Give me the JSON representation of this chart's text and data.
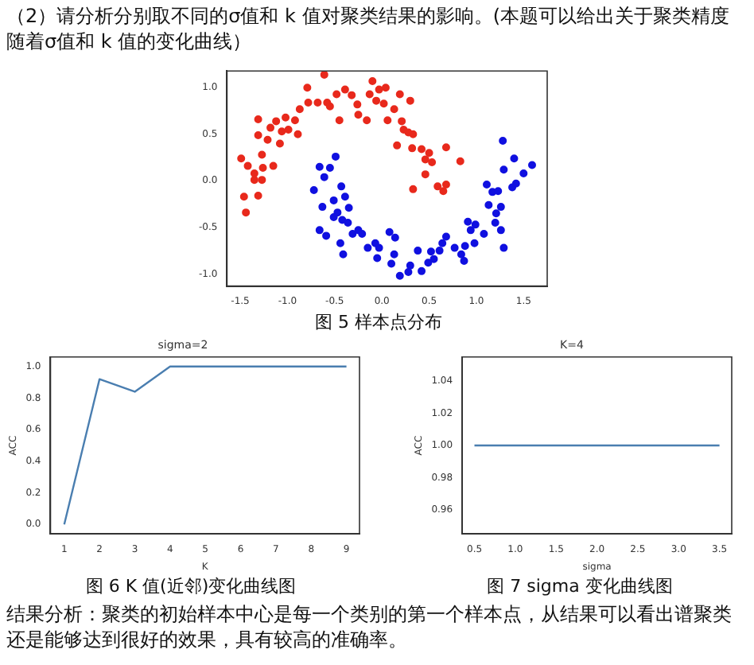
{
  "chart_data": [
    {
      "type": "scatter",
      "marker": "circle",
      "xlim": [
        -1.64,
        1.75
      ],
      "ylim": [
        -1.13,
        1.18
      ],
      "xticks": [
        -1.5,
        {
          "value": -1,
          "label": "-1.0"
        },
        -0.5,
        {
          "value": 0,
          "label": "0.0"
        },
        0.5,
        {
          "value": 1,
          "label": "1.0"
        },
        1.5
      ],
      "yticks": [
        {
          "value": -1,
          "label": "-1.0"
        },
        -0.5,
        {
          "value": 0,
          "label": "0.0"
        },
        0.5,
        {
          "value": 1,
          "label": "1.0"
        }
      ],
      "annotations": [
        "（2）请分析分别取不同的σ值和 k 值对聚类结果的影响。(本题可以给出关于聚类精度随着σ值和 k 值的变化曲线）",
        "图 5 样本点分布"
      ],
      "series": [
        {
          "color": "#e8291c",
          "x": [
            -1.49,
            -1.42,
            -1.46,
            -1.44,
            -1.31,
            -1.31,
            -1.35,
            -1.35,
            -1.27,
            -1.31,
            -1.27,
            -1.26,
            -1.15,
            -1.21,
            -1.18,
            -1.12,
            -1.06,
            -1.02,
            -1.08,
            -0.99,
            -0.92,
            -0.87,
            -0.89,
            -0.79,
            -0.78,
            -0.68,
            -0.61,
            -0.58,
            -0.55,
            -0.48,
            -0.45,
            -0.39,
            -0.32,
            -0.26,
            -0.25,
            -0.16,
            -0.13,
            -0.1,
            -0.06,
            -0.03,
            0.04,
            0.02,
            0.06,
            0.13,
            0.19,
            0.21,
            0.3,
            0.23,
            0.28,
            0.33,
            0.16,
            0.32,
            0.42,
            0.5,
            0.46,
            0.53,
            0.46,
            0.68,
            0.83,
            0.33,
            0.59,
            0.65,
            0.68
          ],
          "values": [
            0.24,
            0.16,
            -0.17,
            -0.34,
            0.66,
            0.49,
            0.08,
            0.01,
            0.01,
            -0.16,
            0.28,
            0.14,
            0.16,
            0.44,
            0.57,
            0.64,
            0.53,
            0.68,
            0.4,
            0.55,
            0.65,
            0.77,
            0.5,
            1.0,
            0.84,
            0.84,
            1.14,
            0.84,
            0.8,
            0.93,
            0.65,
            0.98,
            0.92,
            0.82,
            0.71,
            0.65,
            0.93,
            1.07,
            0.86,
            0.98,
            1.0,
            0.83,
            0.65,
            0.77,
            0.93,
            0.64,
            0.86,
            0.55,
            0.52,
            0.5,
            0.38,
            0.35,
            0.34,
            0.3,
            0.23,
            0.2,
            0.07,
            0.36,
            0.21,
            -0.09,
            -0.06,
            -0.11,
            -0.04
          ]
        },
        {
          "color": "#1010e0",
          "x": [
            -0.72,
            -0.66,
            -0.61,
            -0.49,
            -0.55,
            -0.51,
            -0.63,
            -0.43,
            -0.39,
            -0.35,
            -0.47,
            -0.42,
            -0.51,
            -0.36,
            -0.66,
            -0.59,
            -0.44,
            -0.41,
            -0.31,
            -0.25,
            -0.21,
            -0.15,
            -0.07,
            -0.03,
            -0.05,
            0.08,
            0.14,
            0.13,
            0.1,
            0.19,
            0.28,
            0.3,
            0.38,
            0.42,
            0.49,
            0.52,
            0.55,
            0.61,
            0.64,
            0.68,
            0.77,
            0.84,
            0.87,
            0.88,
            0.91,
            0.94,
            0.99,
            0.98,
            1.08,
            1.11,
            1.13,
            1.17,
            1.2,
            1.23,
            1.21,
            1.26,
            1.29,
            1.29,
            1.28,
            1.38,
            1.42,
            1.4,
            1.5,
            1.59,
            1.26
          ],
          "values": [
            -0.1,
            0.15,
            0.04,
            0.26,
            0.14,
            -0.21,
            -0.28,
            -0.06,
            -0.17,
            -0.29,
            -0.34,
            -0.42,
            -0.39,
            -0.45,
            -0.53,
            -0.59,
            -0.67,
            -0.79,
            -0.57,
            -0.53,
            -0.57,
            -0.72,
            -0.67,
            -0.72,
            -0.83,
            -0.55,
            -0.61,
            -0.79,
            -0.89,
            -1.02,
            -0.98,
            -0.91,
            -0.75,
            -0.97,
            -0.88,
            -0.76,
            -0.84,
            -0.75,
            -0.67,
            -0.6,
            -0.72,
            -0.79,
            -0.86,
            -0.7,
            -0.44,
            -0.53,
            -0.47,
            -0.67,
            -0.57,
            -0.04,
            -0.26,
            -0.12,
            -0.45,
            -0.11,
            -0.35,
            -0.53,
            -0.72,
            0.12,
            0.43,
            -0.07,
            -0.03,
            0.24,
            0.08,
            0.17,
            -0.28
          ]
        }
      ]
    },
    {
      "type": "line",
      "marker": "none",
      "title": "sigma=2",
      "xlabel": "K",
      "ylabel": "ACC",
      "xlim": [
        0.61,
        9.37
      ],
      "ylim": [
        -0.06,
        1.06
      ],
      "xticks": [
        1,
        2,
        3,
        4,
        5,
        6,
        7,
        8,
        9
      ],
      "yticks": [
        {
          "value": 0,
          "label": "0.0"
        },
        0.2,
        0.4,
        0.6,
        0.8,
        {
          "value": 1,
          "label": "1.0"
        }
      ],
      "annotations": [
        "图 6 K 值(近邻)变化曲线图"
      ],
      "series": [
        {
          "color": "#4a7eb0",
          "x": [
            1,
            2,
            3,
            4,
            5,
            6,
            7,
            8,
            9
          ],
          "values": [
            0,
            0.92,
            0.84,
            1,
            1,
            1,
            1,
            1,
            1
          ]
        }
      ]
    },
    {
      "type": "line",
      "marker": "none",
      "title": "K=4",
      "xlabel": "sigma",
      "ylabel": "ACC",
      "xlim": [
        0.35,
        3.65
      ],
      "ylim": [
        0.945,
        1.055
      ],
      "xticks": [
        0.5,
        {
          "value": 1,
          "label": "1.0"
        },
        1.5,
        {
          "value": 2,
          "label": "2.0"
        },
        2.5,
        {
          "value": 3,
          "label": "3.0"
        },
        3.5
      ],
      "yticks": [
        0.96,
        0.98,
        {
          "value": 1,
          "label": "1.00"
        },
        1.02,
        1.04
      ],
      "annotations": [
        "图 7 sigma 变化曲线图",
        "结果分析：聚类的初始样本中心是每一个类别的第一个样本点，从结果可以看出谱聚类还是能够达到很好的效果，具有较高的准确率。"
      ],
      "series": [
        {
          "color": "#4a7eb0",
          "x": [
            0.5,
            1,
            1.5,
            2,
            2.5,
            3,
            3.5
          ],
          "values": [
            1,
            1,
            1,
            1,
            1,
            1,
            1
          ]
        }
      ]
    }
  ]
}
